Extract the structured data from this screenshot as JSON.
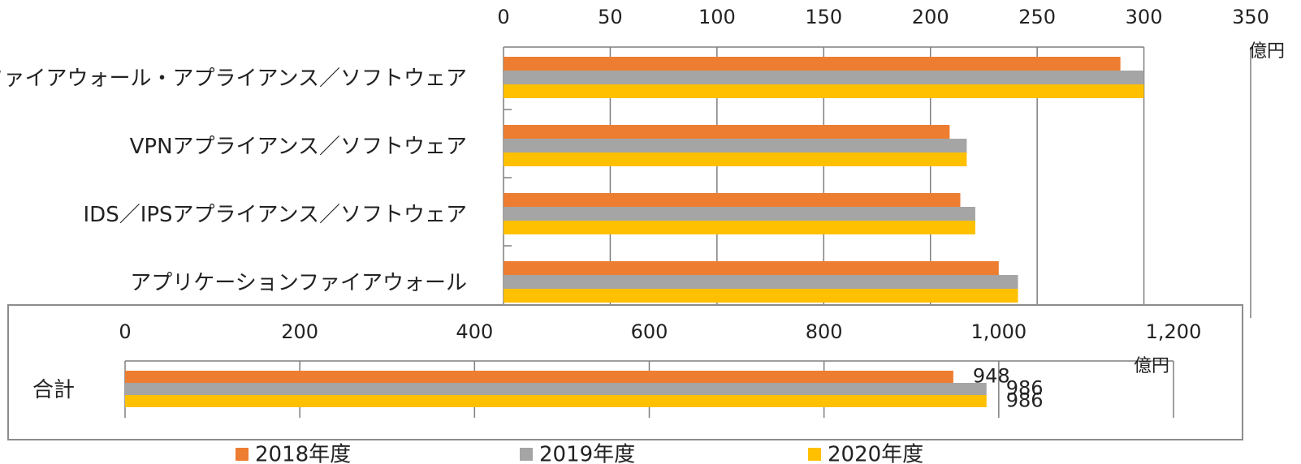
{
  "colors": {
    "y2018": "#ED7D31",
    "y2019": "#A5A5A5",
    "y2020": "#FFC000"
  },
  "legend": {
    "items": [
      "2018年度",
      "2019年度",
      "2020年度"
    ],
    "position": "bottom"
  },
  "chart_data": [
    {
      "type": "bar",
      "orientation": "horizontal",
      "unit": "億円",
      "xlim": [
        0,
        350
      ],
      "x_ticks": [
        "0",
        "50",
        "100",
        "150",
        "200",
        "250",
        "300",
        "350"
      ],
      "categories": [
        "ファイアウォール・アプライアンス／ソフトウェア",
        "VPNアプライアンス／ソフトウェア",
        "IDS／IPSアプライアンス／ソフトウェア",
        "アプリケーションファイアウォール"
      ],
      "series": [
        {
          "name": "2018年度",
          "values": [
            289,
            209,
            214,
            232
          ]
        },
        {
          "name": "2019年度",
          "values": [
            300,
            217,
            221,
            241
          ]
        },
        {
          "name": "2020年度",
          "values": [
            300,
            217,
            221,
            241
          ]
        }
      ],
      "grid": "vertical"
    },
    {
      "type": "bar",
      "orientation": "horizontal",
      "unit": "億円",
      "xlim": [
        0,
        1200
      ],
      "x_ticks": [
        "0",
        "200",
        "400",
        "600",
        "800",
        "1,000",
        "1,200"
      ],
      "categories": [
        "合計"
      ],
      "series": [
        {
          "name": "2018年度",
          "values": [
            948
          ]
        },
        {
          "name": "2019年度",
          "values": [
            986
          ]
        },
        {
          "name": "2020年度",
          "values": [
            986
          ]
        }
      ],
      "data_labels": [
        "948",
        "986",
        "986"
      ],
      "grid": "vertical"
    }
  ]
}
